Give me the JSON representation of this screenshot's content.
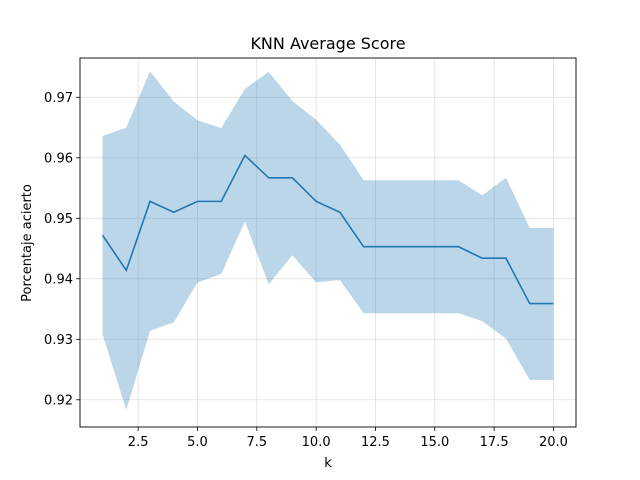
{
  "chart_data": {
    "type": "line",
    "title": "KNN Average Score",
    "xlabel": "k",
    "ylabel": "Porcentaje acierto",
    "xlim": [
      0.05,
      20.95
    ],
    "ylim": [
      0.9155,
      0.9765
    ],
    "grid": true,
    "x": [
      1,
      2,
      3,
      4,
      5,
      6,
      7,
      8,
      9,
      10,
      11,
      12,
      13,
      14,
      15,
      16,
      17,
      18,
      19,
      20
    ],
    "series": [
      {
        "values": [
          0.9472,
          0.9414,
          0.9528,
          0.951,
          0.9528,
          0.9528,
          0.9604,
          0.9567,
          0.9567,
          0.9528,
          0.951,
          0.9453,
          0.9453,
          0.9453,
          0.9453,
          0.9453,
          0.9434,
          0.9434,
          0.9359,
          0.9359
        ],
        "upper": [
          0.9636,
          0.965,
          0.9743,
          0.9693,
          0.9662,
          0.9649,
          0.9714,
          0.9742,
          0.9694,
          0.9663,
          0.9622,
          0.9563,
          0.9563,
          0.9563,
          0.9563,
          0.9563,
          0.9538,
          0.9567,
          0.9484,
          0.9484
        ],
        "lower": [
          0.9308,
          0.9183,
          0.9314,
          0.9328,
          0.9394,
          0.9408,
          0.9495,
          0.9391,
          0.9439,
          0.9394,
          0.9398,
          0.9343,
          0.9343,
          0.9343,
          0.9343,
          0.9343,
          0.933,
          0.9301,
          0.9233,
          0.9233
        ]
      }
    ],
    "x_ticks": [
      2.5,
      5.0,
      7.5,
      10.0,
      12.5,
      15.0,
      17.5,
      20.0
    ],
    "x_tick_labels": [
      "2.5",
      "5.0",
      "7.5",
      "10.0",
      "12.5",
      "15.0",
      "17.5",
      "20.0"
    ],
    "y_ticks": [
      0.92,
      0.93,
      0.94,
      0.95,
      0.96,
      0.97
    ],
    "y_tick_labels": [
      "0.92",
      "0.93",
      "0.94",
      "0.95",
      "0.96",
      "0.97"
    ],
    "colors": {
      "line": "#1f77b4",
      "band": "#1f77b4",
      "grid": "#e0e0e0",
      "axis": "#000000"
    }
  }
}
